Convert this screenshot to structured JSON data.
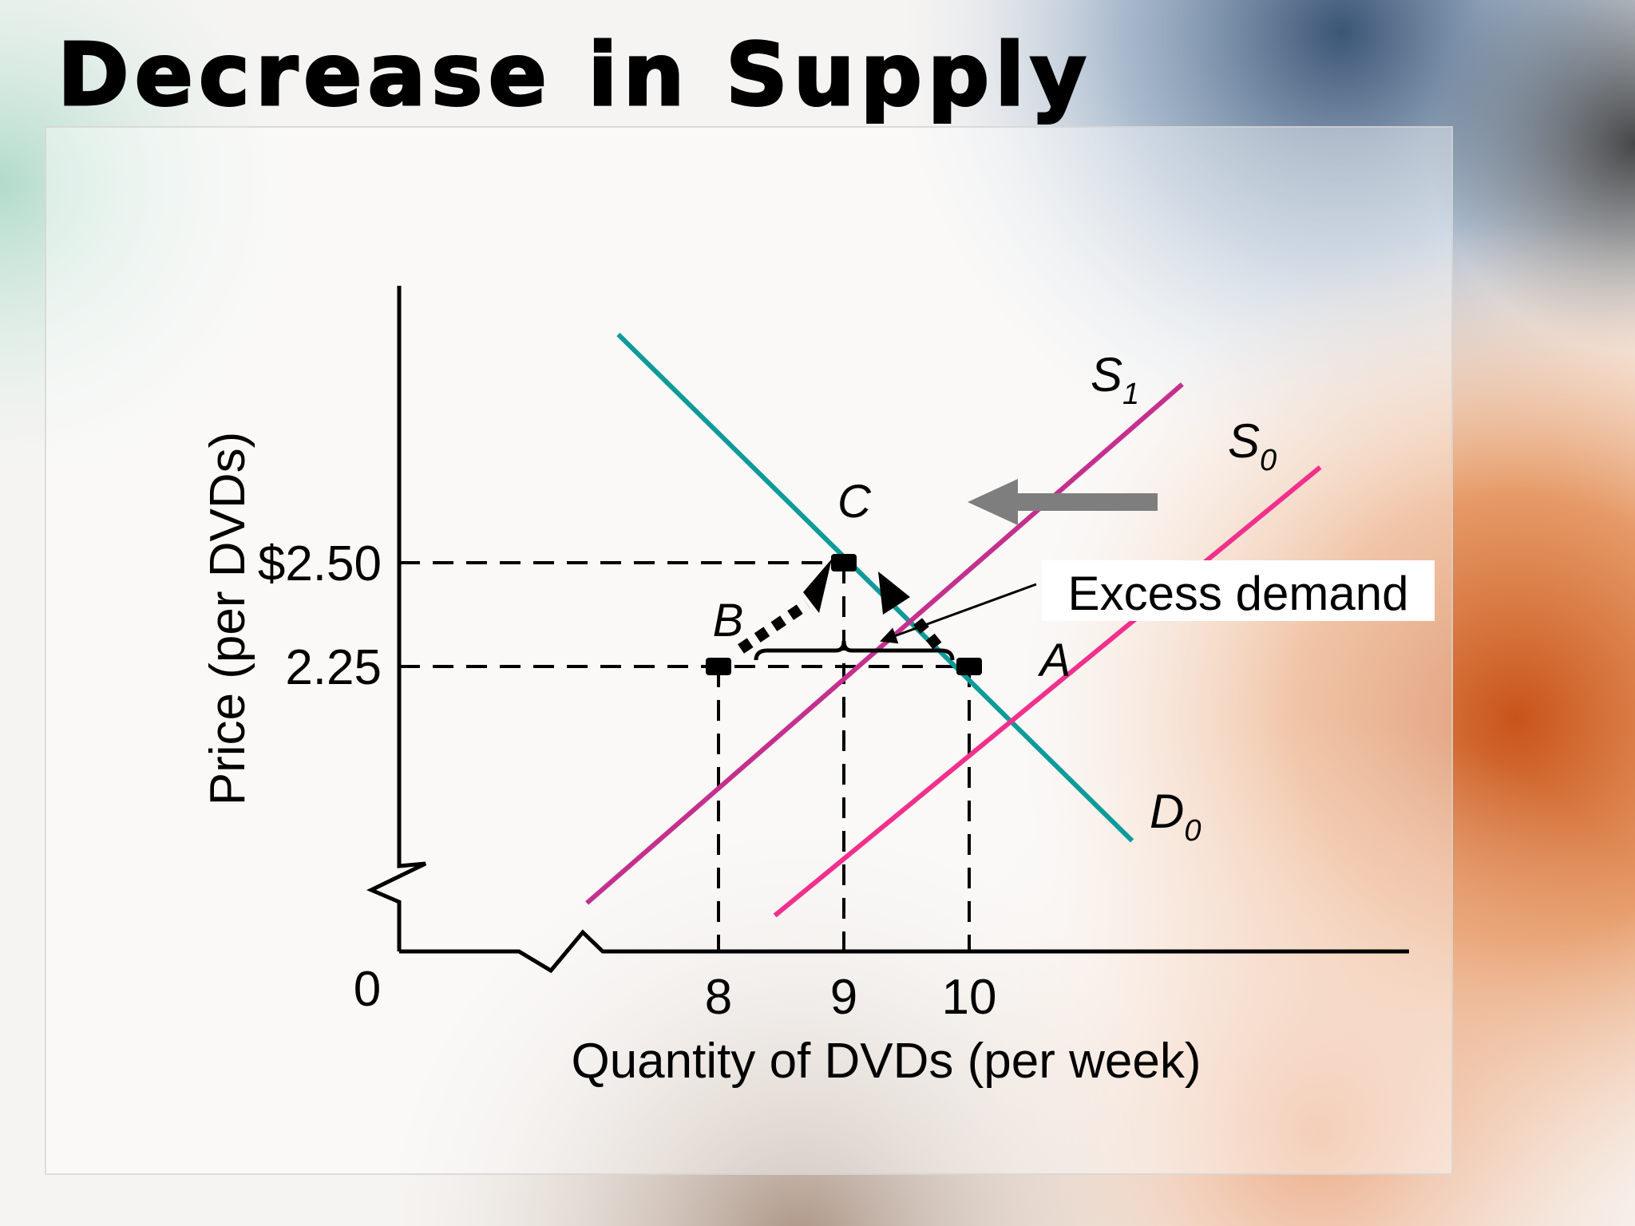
{
  "slide_title": "Decrease in Supply",
  "colors": {
    "demand": "#0e9a9a",
    "supply_initial": "#f0308c",
    "supply_new": "#c4308e",
    "shift_arrow": "#7e7e7e",
    "axis": "#000000"
  },
  "chart_data": {
    "type": "line",
    "xlabel": "Quantity of DVDs (per week)",
    "ylabel": "Price (per DVDs)",
    "origin_label": "0",
    "x_ticks": [
      {
        "value": 8,
        "label": "8"
      },
      {
        "value": 9,
        "label": "9"
      },
      {
        "value": 10,
        "label": "10"
      }
    ],
    "y_ticks": [
      {
        "value": 2.25,
        "label": "2.25"
      },
      {
        "value": 2.5,
        "label": "$2.50"
      }
    ],
    "axis_breaks": true,
    "grid": false,
    "series": [
      {
        "id": "d0",
        "name": "D",
        "subscript": "0",
        "role": "demand",
        "points": [
          {
            "x": 7.2,
            "y": 3.05
          },
          {
            "x": 11.3,
            "y": 1.83
          }
        ]
      },
      {
        "id": "s1",
        "name": "S",
        "subscript": "1",
        "role": "supply_new",
        "points": [
          {
            "x": 6.95,
            "y": 1.68
          },
          {
            "x": 11.7,
            "y": 2.93
          }
        ]
      },
      {
        "id": "s0",
        "name": "S",
        "subscript": "0",
        "role": "supply_initial",
        "points": [
          {
            "x": 8.45,
            "y": 1.65
          },
          {
            "x": 12.8,
            "y": 2.73
          }
        ]
      }
    ],
    "points": [
      {
        "id": "A",
        "label": "A",
        "x": 10,
        "y": 2.25
      },
      {
        "id": "B",
        "label": "B",
        "x": 8,
        "y": 2.25
      },
      {
        "id": "C",
        "label": "C",
        "x": 9,
        "y": 2.5
      }
    ],
    "annotations": [
      {
        "id": "excess-demand",
        "text": "Excess demand",
        "from_x": 8,
        "to_x": 10,
        "at_y": 2.25
      }
    ],
    "shift": {
      "from": "S0",
      "to": "S1",
      "direction": "left"
    }
  }
}
